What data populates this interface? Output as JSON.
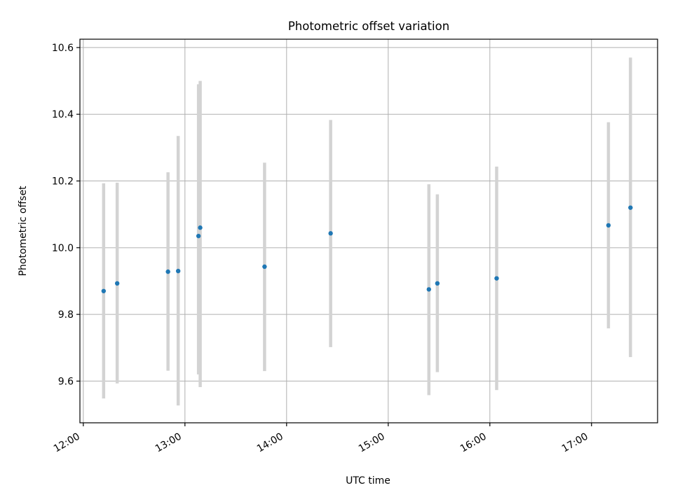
{
  "chart_data": {
    "type": "scatter",
    "title": "Photometric offset variation",
    "xlabel": "UTC time",
    "ylabel": "Photometric offset",
    "xlim": [
      "11:58",
      "17:39"
    ],
    "ylim": [
      9.475,
      10.625
    ],
    "x_ticks": [
      "12:00",
      "13:00",
      "14:00",
      "15:00",
      "16:00",
      "17:00"
    ],
    "y_ticks": [
      9.6,
      9.8,
      10.0,
      10.2,
      10.4,
      10.6
    ],
    "y_tick_labels": [
      "9.6",
      "9.8",
      "10.0",
      "10.2",
      "10.4",
      "10.6"
    ],
    "grid": true,
    "colors": {
      "points": "#1f77b4",
      "error_bars": "#d3d3d3"
    },
    "series": [
      {
        "points": [
          {
            "time": "12:12",
            "y": 9.87,
            "ymin": 9.548,
            "ymax": 10.193
          },
          {
            "time": "12:20",
            "y": 9.893,
            "ymin": 9.593,
            "ymax": 10.195
          },
          {
            "time": "12:50",
            "y": 9.928,
            "ymin": 9.631,
            "ymax": 10.226
          },
          {
            "time": "12:56",
            "y": 9.93,
            "ymin": 9.527,
            "ymax": 10.335
          },
          {
            "time": "13:08",
            "y": 10.035,
            "ymin": 9.62,
            "ymax": 10.49
          },
          {
            "time": "13:09",
            "y": 10.06,
            "ymin": 9.582,
            "ymax": 10.5
          },
          {
            "time": "13:47",
            "y": 9.943,
            "ymin": 9.63,
            "ymax": 10.255
          },
          {
            "time": "14:26",
            "y": 10.043,
            "ymin": 9.702,
            "ymax": 10.383
          },
          {
            "time": "15:24",
            "y": 9.875,
            "ymin": 9.558,
            "ymax": 10.19
          },
          {
            "time": "15:29",
            "y": 9.893,
            "ymin": 9.627,
            "ymax": 10.16
          },
          {
            "time": "16:04",
            "y": 9.908,
            "ymin": 9.573,
            "ymax": 10.243
          },
          {
            "time": "17:10",
            "y": 10.067,
            "ymin": 9.758,
            "ymax": 10.376
          },
          {
            "time": "17:23",
            "y": 10.12,
            "ymin": 9.672,
            "ymax": 10.57
          }
        ]
      }
    ]
  }
}
